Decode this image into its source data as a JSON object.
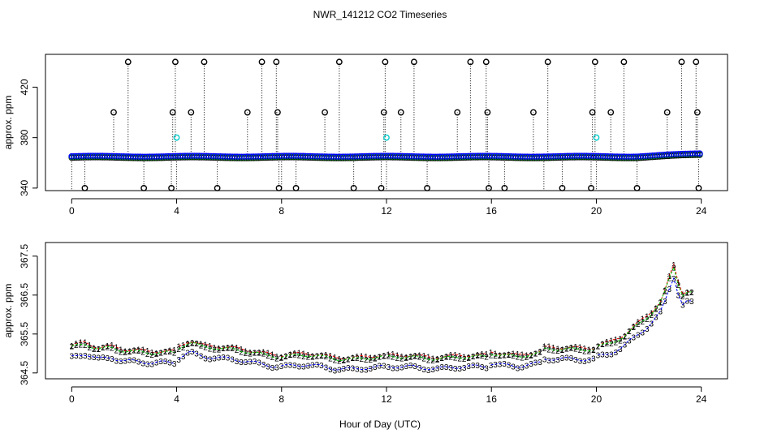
{
  "title": "NWR_141212  CO2 Timeseries",
  "xlabel": "Hour of Day (UTC)",
  "colors": {
    "black": "#000000",
    "red": "#ff0000",
    "green": "#00cc00",
    "blue": "#0000ff",
    "cyan": "#00cccc"
  },
  "chart_data": [
    {
      "id": "top",
      "type": "scatter",
      "ylabel": "approx. ppm",
      "xlim": [
        -1.0,
        25.0
      ],
      "ylim": [
        338,
        446
      ],
      "xticks": [
        0,
        4,
        8,
        12,
        16,
        20,
        24
      ],
      "xtick_labels": [
        "0",
        "4",
        "8",
        "12",
        "16",
        "20",
        "24"
      ],
      "yticks": [
        340,
        380,
        420
      ],
      "ytick_labels": [
        "340",
        "380",
        "420"
      ],
      "baseline": 364.8,
      "spike_high": [
        {
          "x": 1.6,
          "y": 400
        },
        {
          "x": 2.15,
          "y": 440
        },
        {
          "x": 3.85,
          "y": 400
        },
        {
          "x": 3.95,
          "y": 440
        },
        {
          "x": 4.55,
          "y": 400
        },
        {
          "x": 5.05,
          "y": 440
        },
        {
          "x": 6.7,
          "y": 400
        },
        {
          "x": 7.25,
          "y": 440
        },
        {
          "x": 7.8,
          "y": 440
        },
        {
          "x": 7.85,
          "y": 400
        },
        {
          "x": 9.65,
          "y": 400
        },
        {
          "x": 10.2,
          "y": 440
        },
        {
          "x": 11.9,
          "y": 400
        },
        {
          "x": 11.95,
          "y": 440
        },
        {
          "x": 12.55,
          "y": 400
        },
        {
          "x": 13.05,
          "y": 440
        },
        {
          "x": 14.7,
          "y": 400
        },
        {
          "x": 15.2,
          "y": 440
        },
        {
          "x": 15.8,
          "y": 440
        },
        {
          "x": 15.85,
          "y": 400
        },
        {
          "x": 17.6,
          "y": 400
        },
        {
          "x": 18.15,
          "y": 440
        },
        {
          "x": 19.85,
          "y": 400
        },
        {
          "x": 19.95,
          "y": 440
        },
        {
          "x": 20.55,
          "y": 400
        },
        {
          "x": 21.05,
          "y": 440
        },
        {
          "x": 22.7,
          "y": 400
        },
        {
          "x": 23.25,
          "y": 440
        },
        {
          "x": 23.8,
          "y": 440
        },
        {
          "x": 23.85,
          "y": 400
        }
      ],
      "spike_low": [
        0.5,
        2.75,
        3.8,
        5.55,
        7.9,
        8.55,
        10.75,
        11.8,
        13.55,
        15.9,
        16.5,
        18.7,
        19.8,
        21.55,
        23.9
      ],
      "cyan_points": [
        {
          "x": 4.0,
          "y": 380
        },
        {
          "x": 12.0,
          "y": 380
        },
        {
          "x": 20.0,
          "y": 380
        }
      ],
      "gaps": [
        0.0,
        4.0,
        8.0,
        12.0,
        15.9,
        18.0,
        20.0
      ]
    },
    {
      "id": "bottom",
      "type": "scatter",
      "ylabel": "approx. ppm",
      "xlim": [
        -1.0,
        25.0
      ],
      "ylim": [
        364.35,
        367.85
      ],
      "xticks": [
        0,
        4,
        8,
        12,
        16,
        20,
        24
      ],
      "xtick_labels": [
        "0",
        "4",
        "8",
        "12",
        "16",
        "20",
        "24"
      ],
      "yticks": [
        364.5,
        365.5,
        366.5,
        367.5
      ],
      "ytick_labels": [
        "364.5",
        "365.5",
        "366.5",
        "367.5"
      ],
      "series": [
        {
          "name": "1",
          "color": "red",
          "offset": 0.12
        },
        {
          "name": "2",
          "color": "green",
          "offset": 0.08
        },
        {
          "name": "3",
          "color": "blue",
          "offset": -0.17
        }
      ],
      "profile": [
        [
          0.0,
          365.05
        ],
        [
          0.5,
          365.15
        ],
        [
          1.0,
          365.05
        ],
        [
          1.5,
          365.1
        ],
        [
          2.0,
          365.0
        ],
        [
          2.5,
          364.95
        ],
        [
          3.0,
          364.9
        ],
        [
          3.95,
          364.95
        ],
        [
          4.0,
          365.05
        ],
        [
          4.5,
          365.25
        ],
        [
          5.0,
          365.1
        ],
        [
          6.0,
          365.0
        ],
        [
          7.0,
          364.95
        ],
        [
          7.95,
          364.85
        ],
        [
          8.0,
          364.85
        ],
        [
          9.0,
          364.85
        ],
        [
          10.0,
          364.8
        ],
        [
          11.0,
          364.8
        ],
        [
          11.95,
          364.8
        ],
        [
          12.0,
          364.8
        ],
        [
          13.0,
          364.85
        ],
        [
          14.0,
          364.8
        ],
        [
          15.0,
          364.8
        ],
        [
          15.9,
          364.85
        ],
        [
          16.0,
          364.95
        ],
        [
          17.0,
          364.85
        ],
        [
          17.95,
          364.9
        ],
        [
          18.0,
          365.0
        ],
        [
          19.0,
          365.05
        ],
        [
          19.95,
          365.05
        ],
        [
          20.0,
          365.1
        ],
        [
          20.5,
          365.15
        ],
        [
          21.0,
          365.3
        ],
        [
          21.5,
          365.6
        ],
        [
          22.0,
          365.9
        ],
        [
          22.5,
          366.3
        ],
        [
          22.9,
          367.1
        ],
        [
          23.0,
          367.2
        ],
        [
          23.2,
          366.4
        ],
        [
          23.5,
          366.5
        ],
        [
          23.8,
          366.4
        ]
      ]
    }
  ]
}
